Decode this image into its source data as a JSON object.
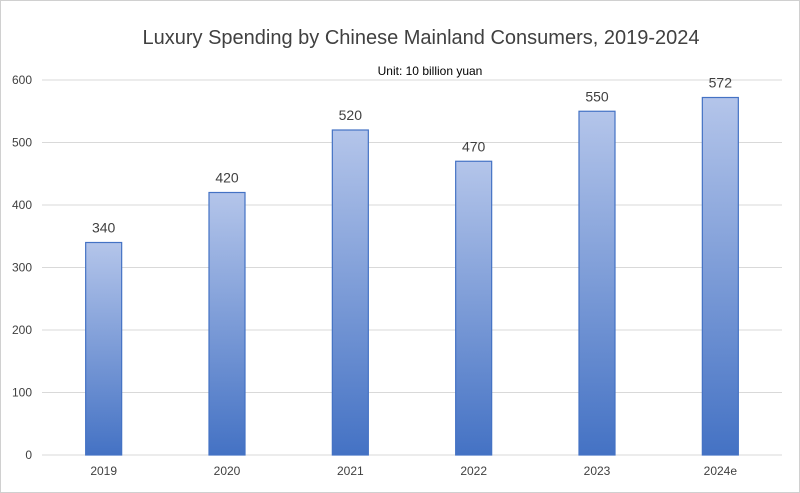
{
  "chart_data": {
    "type": "bar",
    "title": "Luxury Spending by Chinese Mainland Consumers, 2019-2024",
    "subtitle": "Unit: 10 billion yuan",
    "categories": [
      "2019",
      "2020",
      "2021",
      "2022",
      "2023",
      "2024e"
    ],
    "values": [
      340,
      420,
      520,
      470,
      550,
      572
    ],
    "xlabel": "",
    "ylabel": "",
    "ylim": [
      0,
      600
    ],
    "yticks": [
      0,
      100,
      200,
      300,
      400,
      500,
      600
    ],
    "grid": true,
    "colors": {
      "bar_top": "#B4C5EA",
      "bar_bottom": "#4472C4",
      "bar_border": "#4472C4",
      "grid": "#D9D9D9"
    }
  }
}
